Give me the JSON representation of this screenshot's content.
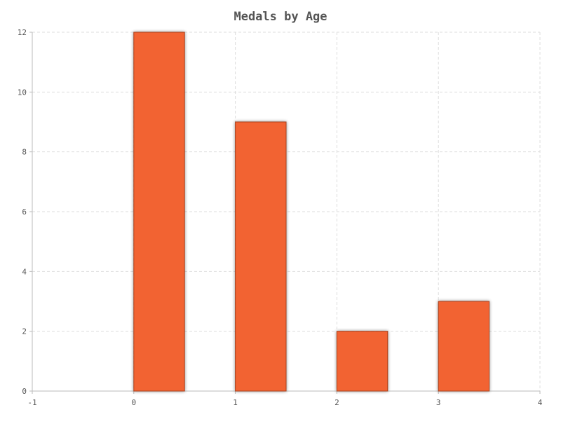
{
  "chart_data": {
    "type": "bar",
    "title": "Medals by Age",
    "xlabel": "",
    "ylabel": "",
    "x": [
      0,
      1,
      2,
      3
    ],
    "values": [
      12,
      9,
      2,
      3
    ],
    "xlim": [
      -1,
      4
    ],
    "ylim": [
      0,
      12
    ],
    "xticks": [
      -1,
      0,
      1,
      2,
      3,
      4
    ],
    "yticks": [
      0,
      2,
      4,
      6,
      8,
      10,
      12
    ],
    "grid": true,
    "bar_color": "#f26430",
    "bar_edge_color": "#a8401c",
    "grid_color": "#dddddd",
    "axis_color": "#bbbbbb"
  }
}
